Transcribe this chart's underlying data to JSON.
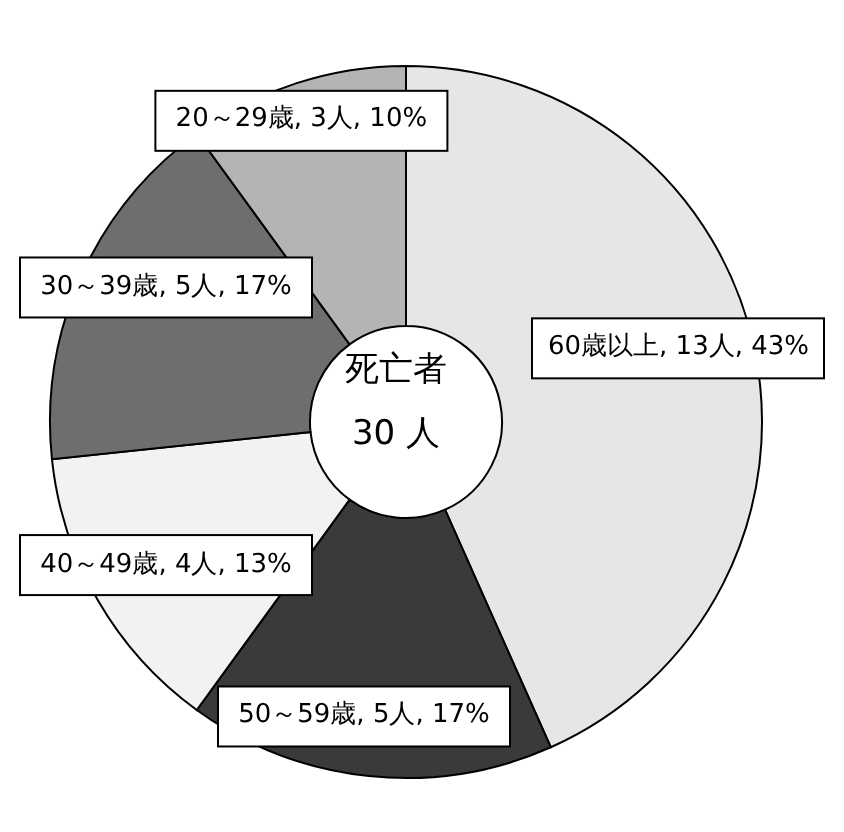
{
  "chart_data": {
    "type": "donut",
    "categories": [
      "60歳以上",
      "50～59歳",
      "40～49歳",
      "30～39歳",
      "20～29歳"
    ],
    "values": [
      13,
      5,
      4,
      5,
      3
    ],
    "value_labels": [
      "13人, 43%",
      "5人, 17%",
      "4人, 13%",
      "5人, 17%",
      "3人, 10%"
    ],
    "colors": [
      "#e6e6e6",
      "#3a3a3a",
      "#f2f2f2",
      "#6e6e6e",
      "#b4b4b4"
    ],
    "annotations": [
      "死亡者",
      "30 人"
    ],
    "legend": false
  }
}
